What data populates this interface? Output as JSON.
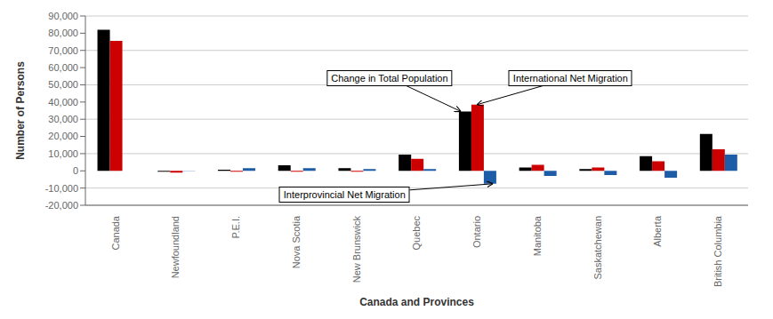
{
  "chart_data": {
    "type": "bar",
    "xlabel": "Canada and Provinces",
    "ylabel": "Number of Persons",
    "categories": [
      "Canada",
      "Newfoundland",
      "P.E.I.",
      "Nova Scotia",
      "New Brunswick",
      "Quebec",
      "Ontario",
      "Manitoba",
      "Saskatchewan",
      "Alberta",
      "British Columbia"
    ],
    "series": [
      {
        "name": "Change in Total Population",
        "color": "#000000",
        "values": [
          82000,
          -500,
          700,
          3200,
          1500,
          9500,
          34500,
          2000,
          1000,
          8500,
          21500
        ]
      },
      {
        "name": "International Net Migration",
        "color": "#cc0000",
        "values": [
          75500,
          -1000,
          -500,
          -500,
          -500,
          7000,
          38500,
          3500,
          2000,
          5500,
          12500
        ]
      },
      {
        "name": "Interprovincial Net Migration",
        "color": "#1f5ca8",
        "values": [
          0,
          200,
          1500,
          1500,
          1000,
          1000,
          -7500,
          -3000,
          -2500,
          -4000,
          9500
        ]
      }
    ],
    "ylim": [
      -20000,
      90000
    ],
    "yticks": [
      {
        "value": -20000,
        "label": "-20,000"
      },
      {
        "value": -10000,
        "label": "-10,000"
      },
      0,
      {
        "value": 10000,
        "label": "10,000"
      },
      {
        "value": 20000,
        "label": "20,000"
      },
      {
        "value": 30000,
        "label": "30,000"
      },
      {
        "value": 40000,
        "label": "40,000"
      },
      {
        "value": 50000,
        "label": "50,000"
      },
      {
        "value": 60000,
        "label": "60,000"
      },
      {
        "value": 70000,
        "label": "70,000"
      },
      {
        "value": 80000,
        "label": "80,000"
      },
      {
        "value": 90000,
        "label": "90,000"
      }
    ],
    "grid": true,
    "annotations": [
      {
        "text": "Change in Total Population",
        "x": "Ontario",
        "y": 34500
      },
      {
        "text": "International Net Migration",
        "x": "Ontario",
        "y": 38500
      },
      {
        "text": "Interprovincial Net Migration",
        "x": "Ontario",
        "y": -7500
      }
    ]
  }
}
